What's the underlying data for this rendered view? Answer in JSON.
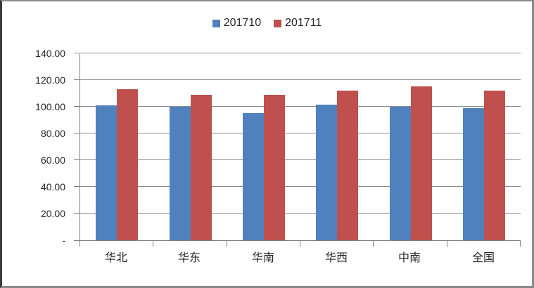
{
  "chart_data": {
    "type": "bar",
    "title": "",
    "xlabel": "",
    "ylabel": "",
    "categories": [
      "华北",
      "华东",
      "华南",
      "华西",
      "中南",
      "全国"
    ],
    "series": [
      {
        "name": "201710",
        "color": "#4F81BD",
        "values": [
          101.2,
          100.0,
          95.4,
          101.8,
          100.0,
          98.8
        ]
      },
      {
        "name": "201711",
        "color": "#C0504D",
        "values": [
          113.2,
          108.8,
          109.1,
          112.3,
          115.4,
          112.3
        ]
      }
    ],
    "ylim": [
      0,
      140
    ],
    "ytick_step": 20,
    "ytick_labels": [
      "-",
      "20.00",
      "40.00",
      "60.00",
      "80.00",
      "100.00",
      "120.00",
      "140.00"
    ],
    "grid": true,
    "legend_position": "top-center"
  },
  "colors": {
    "series_blue": "#4F81BD",
    "series_red": "#C0504D",
    "gridline": "#8c8c8c",
    "axis": "#7f7f7f",
    "text": "#262626",
    "frame": "#8a8a8a"
  },
  "layout_labels": {
    "legend_names": [
      "201710",
      "201711"
    ]
  }
}
